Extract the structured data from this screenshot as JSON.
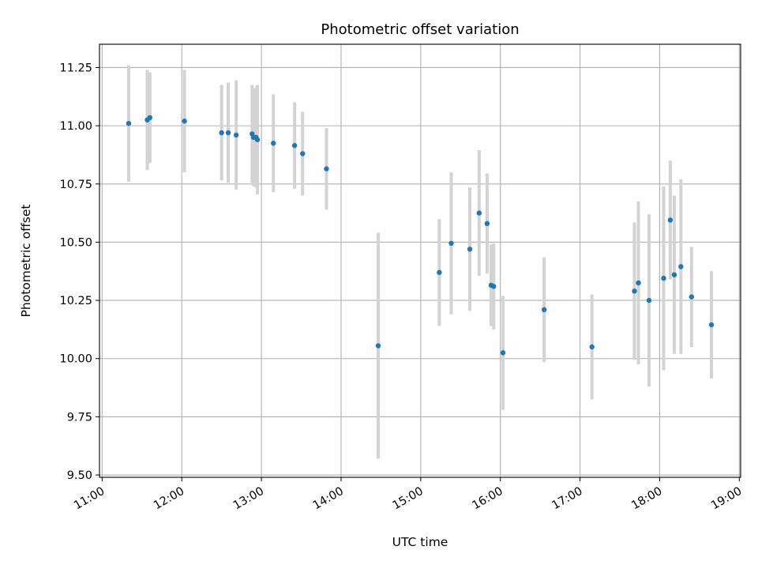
{
  "chart_data": {
    "type": "scatter",
    "title": "Photometric offset variation",
    "xlabel": "UTC time",
    "ylabel": "Photometric offset",
    "x_axis_kind": "time",
    "xlim": [
      "10:58",
      "19:01"
    ],
    "ylim": [
      9.49,
      11.35
    ],
    "x_ticks": [
      "11:00",
      "12:00",
      "13:00",
      "14:00",
      "15:00",
      "16:00",
      "17:00",
      "18:00",
      "19:00"
    ],
    "y_ticks": [
      "9.50",
      "9.75",
      "10.00",
      "10.25",
      "10.50",
      "10.75",
      "11.00",
      "11.25"
    ],
    "grid": true,
    "legend": "none",
    "colors": {
      "points": "#1f77b4",
      "errorbars": "#d3d3d3",
      "grid": "#b0b0b0"
    },
    "points": [
      {
        "x": "11:20",
        "y": 11.01,
        "err": 0.25
      },
      {
        "x": "11:34",
        "y": 11.025,
        "err": 0.215
      },
      {
        "x": "11:36",
        "y": 11.035,
        "err": 0.195
      },
      {
        "x": "12:02",
        "y": 11.02,
        "err": 0.22
      },
      {
        "x": "12:30",
        "y": 10.97,
        "err": 0.205
      },
      {
        "x": "12:35",
        "y": 10.97,
        "err": 0.215
      },
      {
        "x": "12:41",
        "y": 10.96,
        "err": 0.235
      },
      {
        "x": "12:53",
        "y": 10.965,
        "err": 0.21
      },
      {
        "x": "12:54",
        "y": 10.95,
        "err": 0.21
      },
      {
        "x": "12:56",
        "y": 10.95,
        "err": 0.215
      },
      {
        "x": "12:57",
        "y": 10.94,
        "err": 0.235
      },
      {
        "x": "13:09",
        "y": 10.925,
        "err": 0.21
      },
      {
        "x": "13:25",
        "y": 10.915,
        "err": 0.185
      },
      {
        "x": "13:31",
        "y": 10.88,
        "err": 0.18
      },
      {
        "x": "13:49",
        "y": 10.815,
        "err": 0.175
      },
      {
        "x": "14:28",
        "y": 10.055,
        "err": 0.485
      },
      {
        "x": "15:14",
        "y": 10.37,
        "err": 0.23
      },
      {
        "x": "15:23",
        "y": 10.495,
        "err": 0.305
      },
      {
        "x": "15:37",
        "y": 10.47,
        "err": 0.265
      },
      {
        "x": "15:44",
        "y": 10.625,
        "err": 0.27
      },
      {
        "x": "15:50",
        "y": 10.58,
        "err": 0.215
      },
      {
        "x": "15:53",
        "y": 10.315,
        "err": 0.175
      },
      {
        "x": "15:55",
        "y": 10.31,
        "err": 0.185
      },
      {
        "x": "16:02",
        "y": 10.025,
        "err": 0.245
      },
      {
        "x": "16:33",
        "y": 10.21,
        "err": 0.225
      },
      {
        "x": "17:09",
        "y": 10.05,
        "err": 0.225
      },
      {
        "x": "17:41",
        "y": 10.29,
        "err": 0.295
      },
      {
        "x": "17:44",
        "y": 10.325,
        "err": 0.35
      },
      {
        "x": "17:52",
        "y": 10.25,
        "err": 0.37
      },
      {
        "x": "18:03",
        "y": 10.345,
        "err": 0.395
      },
      {
        "x": "18:08",
        "y": 10.595,
        "err": 0.255
      },
      {
        "x": "18:11",
        "y": 10.36,
        "err": 0.34
      },
      {
        "x": "18:16",
        "y": 10.395,
        "err": 0.375
      },
      {
        "x": "18:24",
        "y": 10.265,
        "err": 0.215
      },
      {
        "x": "18:39",
        "y": 10.145,
        "err": 0.23
      }
    ]
  }
}
